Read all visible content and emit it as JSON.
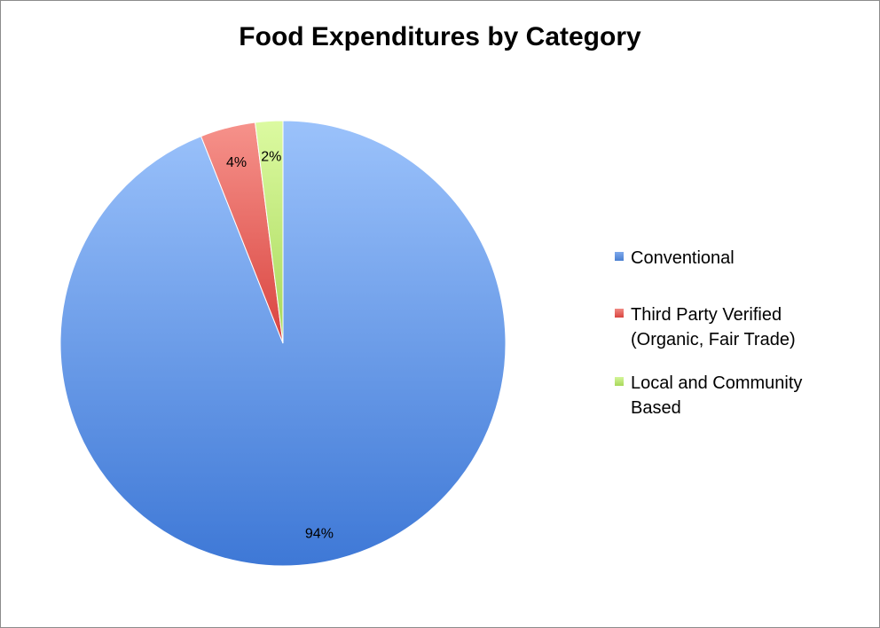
{
  "chart_data": {
    "type": "pie",
    "title": "Food Expenditures by Category",
    "series": [
      {
        "name": "Conventional",
        "value": 94,
        "label": "94%",
        "color": "#4a7fd1"
      },
      {
        "name": "Third Party Verified\n(Organic, Fair Trade)",
        "value": 4,
        "label": "4%",
        "color": "#e05a55"
      },
      {
        "name": "Local and Community\nBased",
        "value": 2,
        "label": "2%",
        "color": "#b5e36b"
      }
    ],
    "legend_position": "right"
  }
}
